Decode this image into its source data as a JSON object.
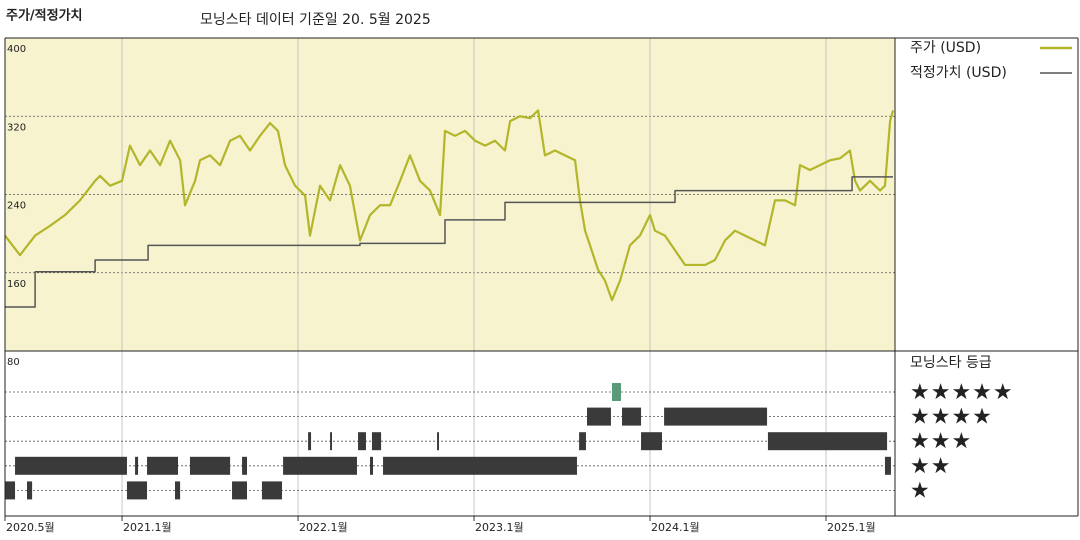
{
  "chart_data": {
    "type": "line",
    "title": "주가/적정가치",
    "subtitle": "모닝스타 데이터 기준일 20. 5월 2025",
    "xlim": [
      2020.335,
      2025.392
    ],
    "xticks": [
      {
        "value": 2020.335,
        "label": "2020.5월"
      },
      {
        "value": 2021,
        "label": "2021.1월"
      },
      {
        "value": 2022,
        "label": "2022.1월"
      },
      {
        "value": 2023,
        "label": "2023.1월"
      },
      {
        "value": 2024,
        "label": "2024.1월"
      },
      {
        "value": 2025,
        "label": "2025.1월"
      }
    ],
    "ylim": [
      80,
      400
    ],
    "yticks": [
      80,
      160,
      240,
      320,
      400
    ],
    "grid": true,
    "series": [
      {
        "name": "주가 (USD)",
        "color": "#b3b52a",
        "x": [
          2020.335,
          2020.42,
          2020.506,
          2020.591,
          2020.676,
          2020.761,
          2020.847,
          2020.875,
          2020.932,
          2021.0,
          2021.045,
          2021.102,
          2021.159,
          2021.216,
          2021.273,
          2021.33,
          2021.358,
          2021.415,
          2021.443,
          2021.5,
          2021.557,
          2021.614,
          2021.67,
          2021.727,
          2021.784,
          2021.841,
          2021.886,
          2021.926,
          2021.983,
          2022.04,
          2022.068,
          2022.125,
          2022.182,
          2022.239,
          2022.295,
          2022.352,
          2022.409,
          2022.466,
          2022.523,
          2022.58,
          2022.636,
          2022.693,
          2022.75,
          2022.807,
          2022.835,
          2022.892,
          2022.949,
          2023.006,
          2023.063,
          2023.119,
          2023.176,
          2023.205,
          2023.261,
          2023.318,
          2023.364,
          2023.403,
          2023.46,
          2023.517,
          2023.574,
          2023.602,
          2023.631,
          2023.659,
          2023.705,
          2023.744,
          2023.784,
          2023.83,
          2023.886,
          2023.943,
          2024.0,
          2024.028,
          2024.085,
          2024.142,
          2024.199,
          2024.256,
          2024.313,
          2024.369,
          2024.426,
          2024.483,
          2024.54,
          2024.597,
          2024.653,
          2024.71,
          2024.767,
          2024.824,
          2024.852,
          2024.909,
          2024.966,
          2025.023,
          2025.08,
          2025.136,
          2025.165,
          2025.193,
          2025.25,
          2025.307,
          2025.335,
          2025.364,
          2025.381
        ],
        "values": [
          198,
          178,
          198,
          208,
          219,
          234,
          254,
          259,
          249,
          254,
          290,
          270,
          285,
          270,
          295,
          275,
          229,
          254,
          275,
          280,
          270,
          295,
          300,
          285,
          300,
          313,
          305,
          270,
          249,
          239,
          198,
          249,
          234,
          270,
          249,
          193,
          219,
          229,
          229,
          254,
          280,
          254,
          244,
          219,
          305,
          300,
          305,
          295,
          290,
          295,
          285,
          315,
          320,
          318,
          326,
          280,
          285,
          280,
          275,
          234,
          203,
          188,
          163,
          152,
          132,
          152,
          188,
          198,
          219,
          203,
          198,
          183,
          168,
          168,
          168,
          173,
          193,
          203,
          198,
          193,
          188,
          234,
          234,
          229,
          270,
          265,
          270,
          275,
          277,
          285,
          254,
          244,
          254,
          244,
          249,
          315,
          326
        ]
      },
      {
        "name": "적정가치 (USD)",
        "color": "#555555",
        "step": true,
        "x": [
          2020.335,
          2020.506,
          2020.847,
          2021.148,
          2022.352,
          2022.835,
          2023.176,
          2024.142,
          2025.148
        ],
        "values": [
          125,
          161,
          173,
          188,
          190,
          214,
          232,
          244,
          258
        ]
      }
    ],
    "ratings": {
      "title": "모닝스타 등급",
      "levels": [
        {
          "name": "★★★★★",
          "color": "#5a9a78",
          "ranges": [
            [
              2023.784,
              2023.835
            ]
          ]
        },
        {
          "name": "★★★★",
          "color": "#3a3a3a",
          "ranges": [
            [
              2023.642,
              2023.778
            ],
            [
              2023.841,
              2023.949
            ],
            [
              2024.08,
              2024.665
            ]
          ]
        },
        {
          "name": "★★★",
          "color": "#3a3a3a",
          "ranges": [
            [
              2022.057,
              2022.074
            ],
            [
              2022.182,
              2022.193
            ],
            [
              2022.341,
              2022.386
            ],
            [
              2022.42,
              2022.472
            ],
            [
              2022.79,
              2022.801
            ],
            [
              2023.597,
              2023.636
            ],
            [
              2023.949,
              2024.068
            ],
            [
              2024.67,
              2025.347
            ]
          ]
        },
        {
          "name": "★★",
          "color": "#3a3a3a",
          "ranges": [
            [
              2020.392,
              2021.028
            ],
            [
              2021.074,
              2021.091
            ],
            [
              2021.142,
              2021.318
            ],
            [
              2021.386,
              2021.614
            ],
            [
              2021.682,
              2021.71
            ],
            [
              2021.915,
              2022.335
            ],
            [
              2022.409,
              2022.426
            ],
            [
              2022.483,
              2023.585
            ],
            [
              2025.335,
              2025.369
            ]
          ]
        },
        {
          "name": "★",
          "color": "#3a3a3a",
          "ranges": [
            [
              2020.335,
              2020.392
            ],
            [
              2020.46,
              2020.489
            ],
            [
              2021.028,
              2021.142
            ],
            [
              2021.301,
              2021.33
            ],
            [
              2021.625,
              2021.71
            ],
            [
              2021.795,
              2021.909
            ]
          ]
        }
      ]
    }
  }
}
